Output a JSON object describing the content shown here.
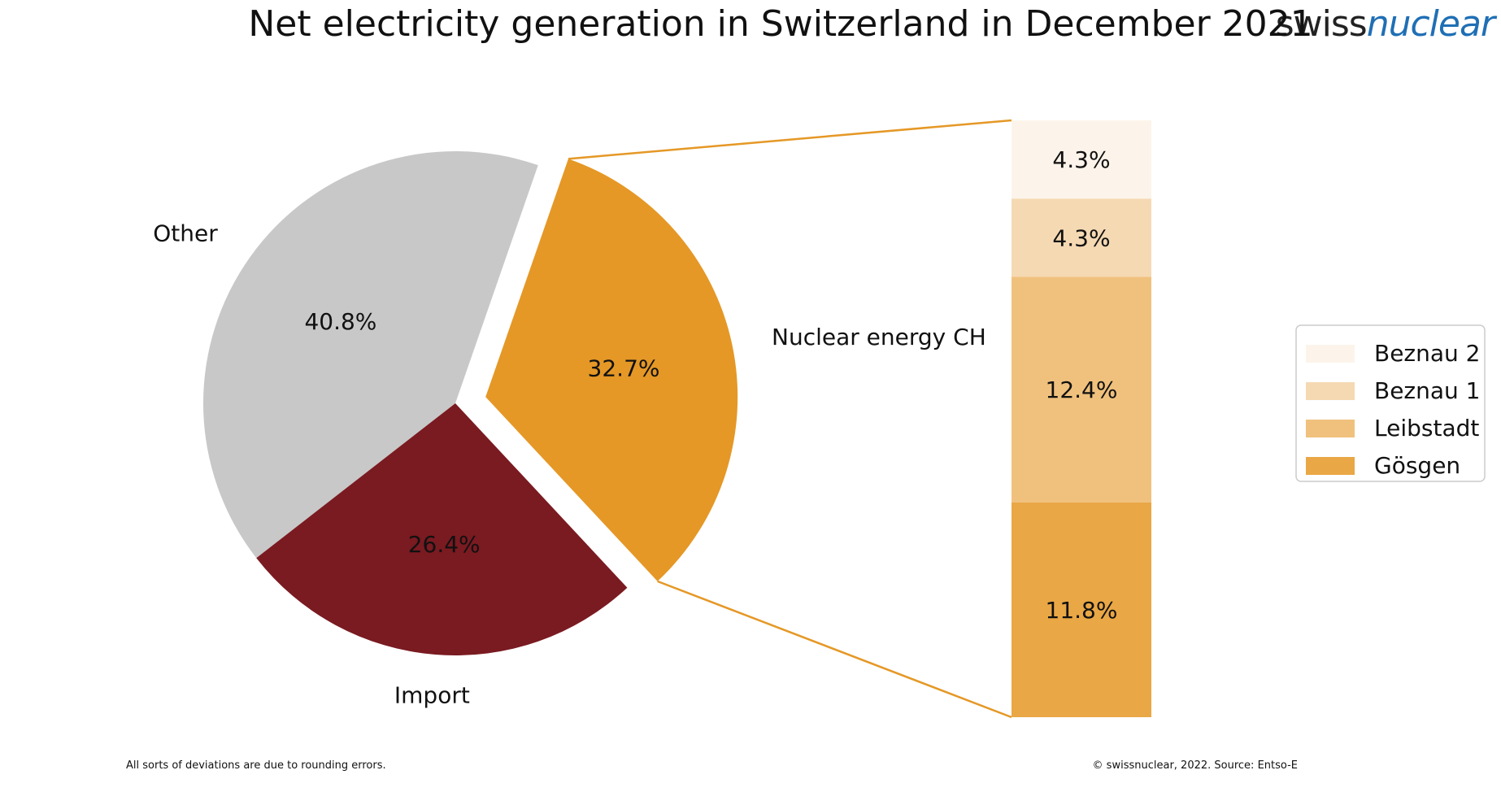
{
  "logo": {
    "part1": "swiss",
    "part2": "nuclear",
    "color_part2": "#1f6fb5"
  },
  "footer": {
    "left": "All sorts of deviations are due to rounding errors.",
    "right": "© swissnuclear, 2022. Source: Entso-E"
  },
  "chart_data": {
    "type": "pie",
    "title": "Net electricity generation in Switzerland in December 2021",
    "pie": {
      "slices": [
        {
          "label": "Nuclear energy CH",
          "value": 32.7,
          "value_label": "32.7%",
          "color": "#e59826",
          "exploded": true
        },
        {
          "label": "Other",
          "value": 40.8,
          "value_label": "40.8%",
          "color": "#c8c8c8"
        },
        {
          "label": "Import",
          "value": 26.4,
          "value_label": "26.4%",
          "color": "#7a1a21"
        }
      ]
    },
    "breakdown_bar": {
      "of": "Nuclear energy CH",
      "segments": [
        {
          "name": "Gösgen",
          "value": 11.8,
          "value_label": "11.8%",
          "color": "#e9a745"
        },
        {
          "name": "Leibstadt",
          "value": 12.4,
          "value_label": "12.4%",
          "color": "#f0c17d"
        },
        {
          "name": "Beznau 1",
          "value": 4.3,
          "value_label": "4.3%",
          "color": "#f5d9b3"
        },
        {
          "name": "Beznau 2",
          "value": 4.3,
          "value_label": "4.3%",
          "color": "#fcf4ea"
        }
      ]
    },
    "legend": {
      "placement": "right",
      "entries": [
        "Beznau 2",
        "Beznau 1",
        "Leibstadt",
        "Gösgen"
      ]
    },
    "connector_color": "#e59826"
  }
}
